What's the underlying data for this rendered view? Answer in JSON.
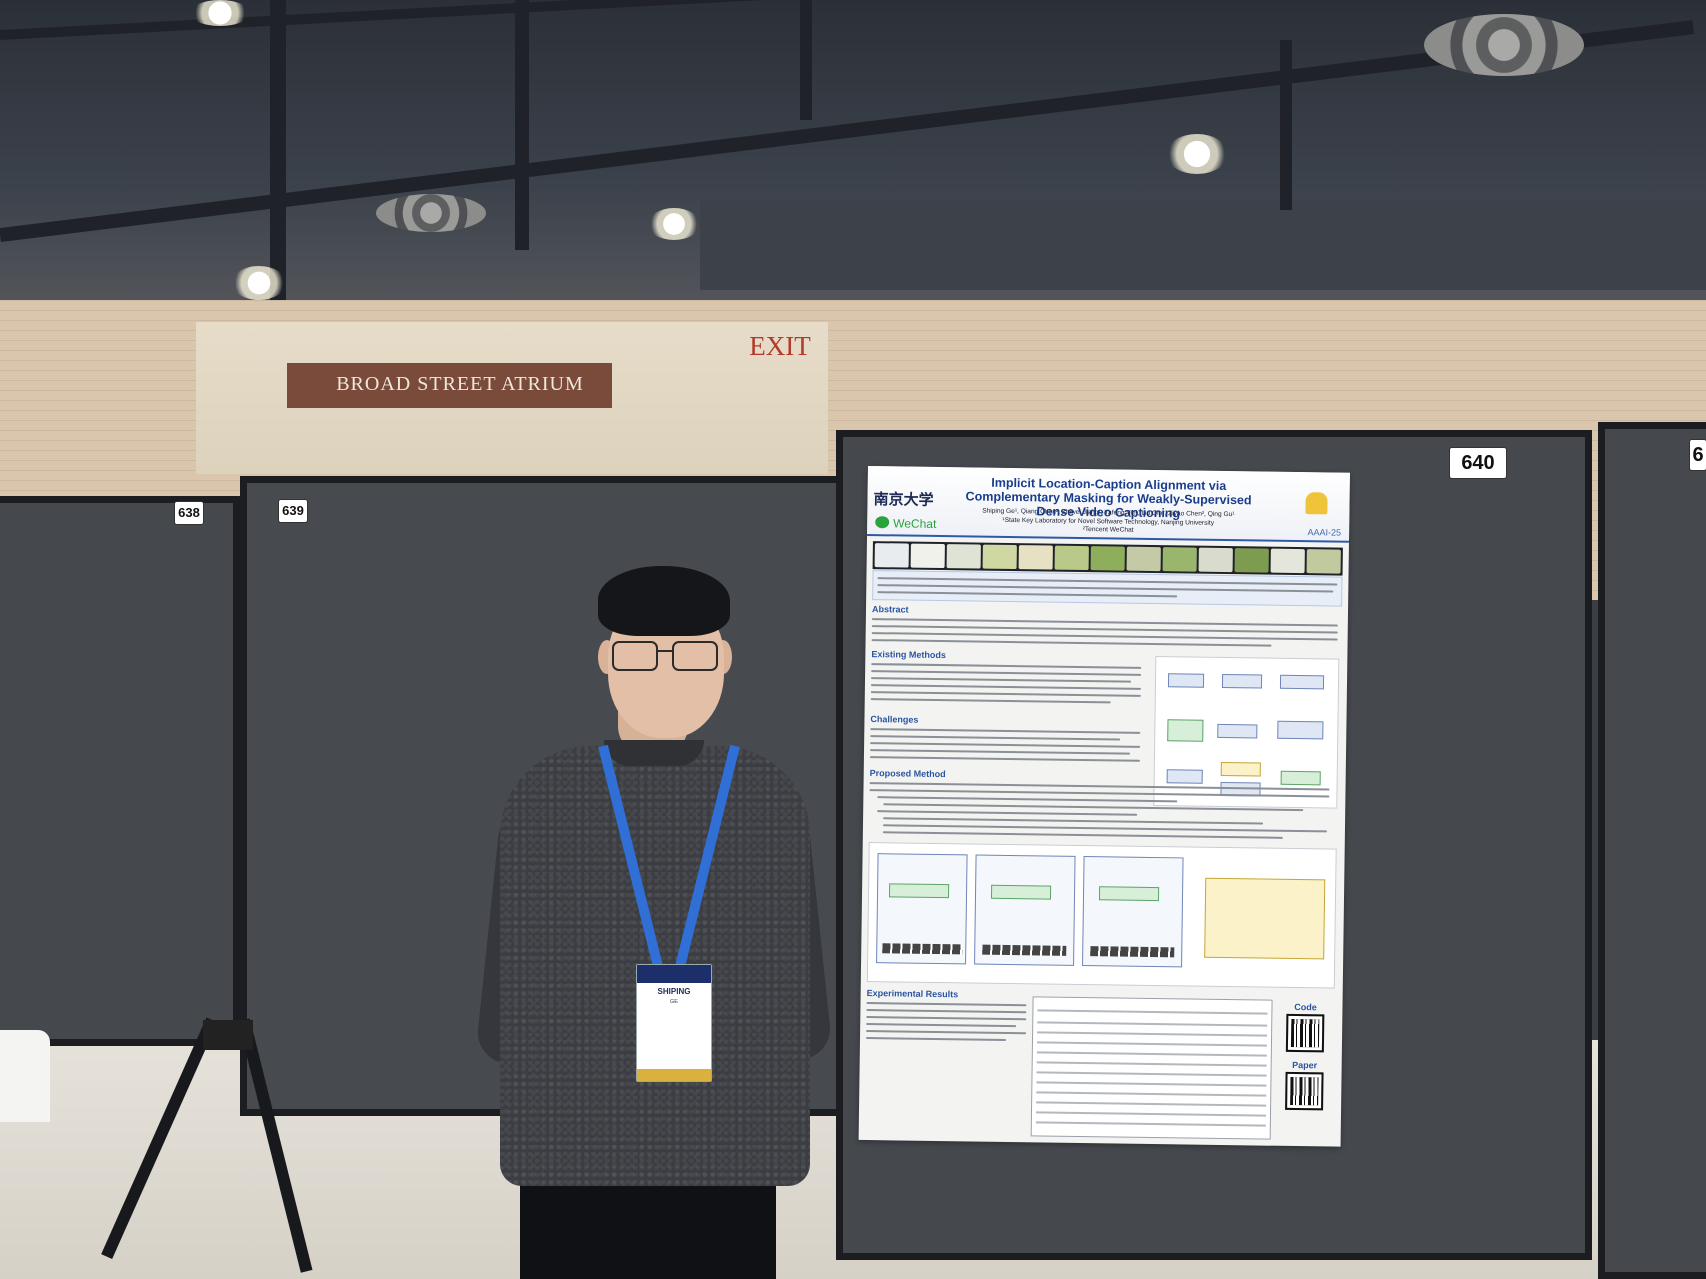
{
  "scene": {
    "venue_sign": "BROAD STREET ATRIUM",
    "exit_sign": "EXIT"
  },
  "boards": {
    "tag_left": "638",
    "tag_middle": "639",
    "tag_right": "640",
    "tag_edge": "6"
  },
  "poster": {
    "university_logo": "南京大学",
    "title": "Implicit Location-Caption Alignment via Complementary Masking for Weakly-Supervised Dense Video Captioning",
    "authors": "Shiping Ge¹, Qiang Chen², Zhiwei Jiang¹, Yafeng Yin¹, Liu Qin², Ziyao Chen², Qing Gu¹",
    "affiliation_1": "¹State Key Laboratory for Novel Software Technology, Nanjing University",
    "affiliation_2": "²Tencent WeChat",
    "wechat_logo": "WeChat",
    "venue": "AAAI-25",
    "sections": {
      "abstract": "Abstract",
      "existing_methods": "Existing Methods",
      "challenges": "Challenges",
      "proposed_method": "Proposed Method",
      "experimental_results": "Experimental Results"
    },
    "code_label": "Code",
    "paper_label": "Paper"
  },
  "badge": {
    "first_name": "SHIPING",
    "last_name": "GE"
  },
  "colors": {
    "poster_accent": "#2b54a3",
    "lanyard": "#2f6fd6",
    "board": "#45494e"
  }
}
